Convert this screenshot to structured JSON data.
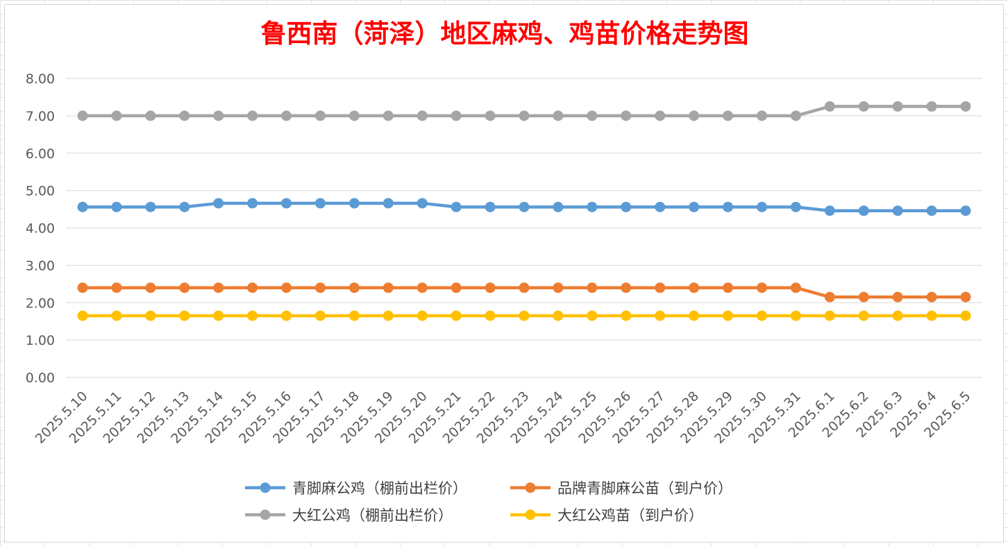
{
  "chart_data": {
    "type": "line",
    "title": "鲁西南（菏泽）地区麻鸡、鸡苗价格走势图",
    "xlabel": "",
    "ylabel": "",
    "ylim": [
      0,
      8
    ],
    "yticks": [
      "0.00",
      "1.00",
      "2.00",
      "3.00",
      "4.00",
      "5.00",
      "6.00",
      "7.00",
      "8.00"
    ],
    "grid": true,
    "legend_position": "bottom",
    "categories": [
      "2025.5.10",
      "2025.5.11",
      "2025.5.12",
      "2025.5.13",
      "2025.5.14",
      "2025.5.15",
      "2025.5.16",
      "2025.5.17",
      "2025.5.18",
      "2025.5.19",
      "2025.5.20",
      "2025.5.21",
      "2025.5.22",
      "2025.5.23",
      "2025.5.24",
      "2025.5.25",
      "2025.5.26",
      "2025.5.27",
      "2025.5.28",
      "2025.5.29",
      "2025.5.30",
      "2025.5.31",
      "2025.6.1",
      "2025.6.2",
      "2025.6.3",
      "2025.6.4",
      "2025.6.5"
    ],
    "series": [
      {
        "name": "青脚麻公鸡（棚前出栏价）",
        "color": "#5b9bd5",
        "values": [
          4.56,
          4.56,
          4.56,
          4.56,
          4.66,
          4.66,
          4.66,
          4.66,
          4.66,
          4.66,
          4.66,
          4.56,
          4.56,
          4.56,
          4.56,
          4.56,
          4.56,
          4.56,
          4.56,
          4.56,
          4.56,
          4.56,
          4.46,
          4.46,
          4.46,
          4.46,
          4.46
        ]
      },
      {
        "name": "品牌青脚麻公苗（到户价）",
        "color": "#ed7d31",
        "values": [
          2.4,
          2.4,
          2.4,
          2.4,
          2.4,
          2.4,
          2.4,
          2.4,
          2.4,
          2.4,
          2.4,
          2.4,
          2.4,
          2.4,
          2.4,
          2.4,
          2.4,
          2.4,
          2.4,
          2.4,
          2.4,
          2.4,
          2.15,
          2.15,
          2.15,
          2.15,
          2.15
        ]
      },
      {
        "name": "大红公鸡（棚前出栏价）",
        "color": "#a5a5a5",
        "values": [
          7.0,
          7.0,
          7.0,
          7.0,
          7.0,
          7.0,
          7.0,
          7.0,
          7.0,
          7.0,
          7.0,
          7.0,
          7.0,
          7.0,
          7.0,
          7.0,
          7.0,
          7.0,
          7.0,
          7.0,
          7.0,
          7.0,
          7.25,
          7.25,
          7.25,
          7.25,
          7.25
        ]
      },
      {
        "name": "大红公鸡苗（到户价）",
        "color": "#ffc000",
        "values": [
          1.65,
          1.65,
          1.65,
          1.65,
          1.65,
          1.65,
          1.65,
          1.65,
          1.65,
          1.65,
          1.65,
          1.65,
          1.65,
          1.65,
          1.65,
          1.65,
          1.65,
          1.65,
          1.65,
          1.65,
          1.65,
          1.65,
          1.65,
          1.65,
          1.65,
          1.65,
          1.65
        ]
      }
    ]
  }
}
